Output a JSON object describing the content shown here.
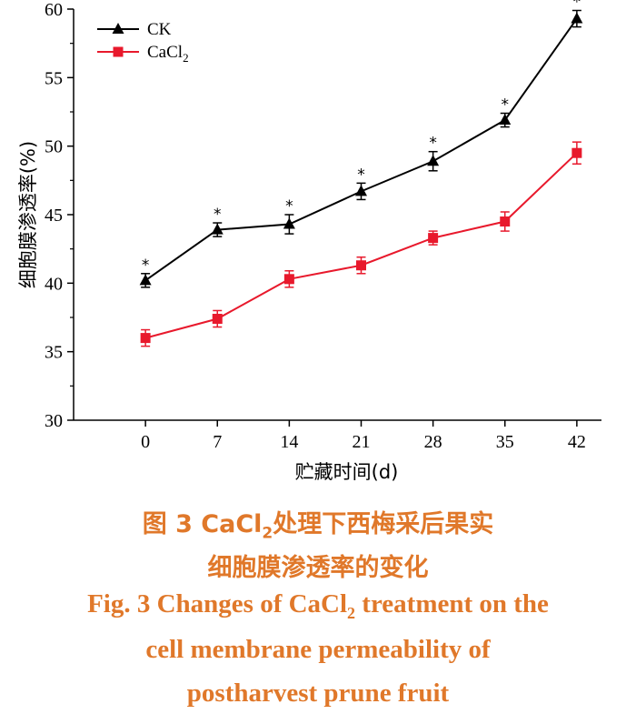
{
  "chart_data": {
    "type": "line",
    "x": [
      0,
      7,
      14,
      21,
      28,
      35,
      42
    ],
    "xlabel": "贮藏时间(d)",
    "ylabel": "细胞膜渗透率(%)",
    "ylim": [
      30,
      60
    ],
    "yticks": [
      30,
      35,
      40,
      45,
      50,
      55,
      60
    ],
    "legend_position": "top-left",
    "series": [
      {
        "name_parts": [
          "CaCl",
          "2"
        ],
        "key": "cacl2",
        "color": "#e8192c",
        "marker": "square",
        "values": [
          36.0,
          37.4,
          40.3,
          41.3,
          43.3,
          44.5,
          49.5
        ],
        "errors": [
          0.6,
          0.6,
          0.6,
          0.6,
          0.5,
          0.7,
          0.8
        ]
      },
      {
        "name": "CK",
        "key": "ck",
        "color": "#000000",
        "marker": "triangle",
        "values": [
          40.2,
          43.9,
          44.3,
          46.7,
          48.9,
          51.9,
          59.3
        ],
        "errors": [
          0.5,
          0.5,
          0.7,
          0.6,
          0.7,
          0.5,
          0.6
        ],
        "annotations": [
          "*",
          "*",
          "*",
          "*",
          "*",
          "*",
          "*"
        ]
      }
    ]
  },
  "caption": {
    "zh_line1_a": "图 3    CaCl",
    "zh_line1_sub": "2",
    "zh_line1_b": "处理下西梅采后果实",
    "zh_line2": "细胞膜渗透率的变化",
    "en_line1_a": "Fig. 3    Changes of CaCl",
    "en_line1_sub": "2",
    "en_line1_b": " treatment on the",
    "en_line2": "cell membrane permeability of",
    "en_line3": "postharvest prune fruit"
  }
}
